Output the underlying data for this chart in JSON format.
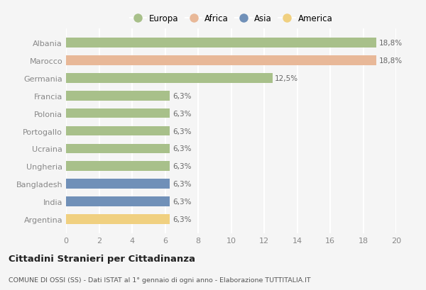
{
  "categories": [
    "Albania",
    "Marocco",
    "Germania",
    "Francia",
    "Polonia",
    "Portogallo",
    "Ucraina",
    "Ungheria",
    "Bangladesh",
    "India",
    "Argentina"
  ],
  "values": [
    18.8,
    18.8,
    12.5,
    6.3,
    6.3,
    6.3,
    6.3,
    6.3,
    6.3,
    6.3,
    6.3
  ],
  "labels": [
    "18,8%",
    "18,8%",
    "12,5%",
    "6,3%",
    "6,3%",
    "6,3%",
    "6,3%",
    "6,3%",
    "6,3%",
    "6,3%",
    "6,3%"
  ],
  "continents": [
    "Europa",
    "Africa",
    "Europa",
    "Europa",
    "Europa",
    "Europa",
    "Europa",
    "Europa",
    "Asia",
    "Asia",
    "America"
  ],
  "colors": {
    "Europa": "#a8c08a",
    "Africa": "#e8b898",
    "Asia": "#7090b8",
    "America": "#f0d080"
  },
  "legend_order": [
    "Europa",
    "Africa",
    "Asia",
    "America"
  ],
  "title": "Cittadini Stranieri per Cittadinanza",
  "subtitle": "COMUNE DI OSSI (SS) - Dati ISTAT al 1° gennaio di ogni anno - Elaborazione TUTTITALIA.IT",
  "xlim": [
    0,
    20
  ],
  "xticks": [
    0,
    2,
    4,
    6,
    8,
    10,
    12,
    14,
    16,
    18,
    20
  ],
  "background_color": "#f5f5f5",
  "grid_color": "#ffffff",
  "bar_height": 0.55
}
